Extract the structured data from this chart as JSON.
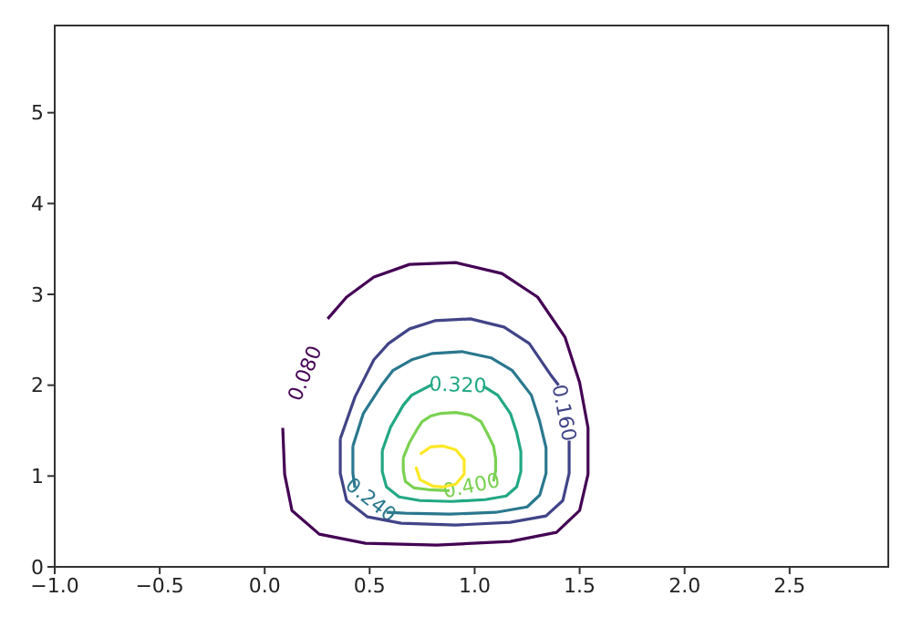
{
  "chart_data": {
    "type": "line",
    "marker": "none",
    "legend": false,
    "xlim": [
      -1,
      2.97
    ],
    "ylim": [
      0,
      5.96
    ],
    "xticks": [
      {
        "value": -1,
        "label": "−1.0"
      },
      {
        "value": -0.5,
        "label": "−0.5"
      },
      {
        "value": 0,
        "label": "0.0"
      },
      {
        "value": 0.5,
        "label": "0.5"
      },
      {
        "value": 1,
        "label": "1.0"
      },
      {
        "value": 1.5,
        "label": "1.5"
      },
      {
        "value": 2,
        "label": "2.0"
      },
      {
        "value": 2.5,
        "label": "2.5"
      }
    ],
    "yticks": [
      0,
      1,
      2,
      3,
      4,
      5
    ],
    "series": [
      {
        "name": "0.080",
        "color": "#440154",
        "x": [
          0.086,
          0.095,
          0.13,
          0.26,
          0.48,
          0.82,
          1.17,
          1.39,
          1.5,
          1.54,
          1.54,
          1.5,
          1.43,
          1.3,
          1.13,
          0.91,
          0.69,
          0.52,
          0.39,
          0.3
        ],
        "values": [
          1.53,
          1.02,
          0.62,
          0.36,
          0.26,
          0.24,
          0.28,
          0.38,
          0.62,
          1.02,
          1.53,
          2.03,
          2.53,
          2.97,
          3.23,
          3.35,
          3.33,
          3.19,
          2.97,
          2.73
        ]
      },
      {
        "name": "0.160",
        "color": "#414487",
        "x": [
          0.36,
          0.36,
          0.39,
          0.49,
          0.65,
          0.91,
          1.17,
          1.34,
          1.42,
          1.45,
          1.45,
          null,
          1.4,
          1.36,
          1.26,
          1.14,
          0.98,
          0.81,
          0.69,
          0.59,
          0.52,
          0.43,
          0.36
        ],
        "values": [
          1.41,
          1.03,
          0.73,
          0.55,
          0.48,
          0.46,
          0.49,
          0.56,
          0.73,
          1.03,
          1.39,
          null,
          2.0,
          2.12,
          2.46,
          2.64,
          2.73,
          2.71,
          2.62,
          2.46,
          2.28,
          1.87,
          1.41
        ]
      },
      {
        "name": "0.240",
        "color": "#2a788e",
        "x": [
          0.42,
          0.42,
          0.43,
          null,
          0.58,
          0.67,
          0.88,
          1.1,
          1.25,
          1.31,
          1.34,
          1.34,
          1.31,
          1.27,
          1.18,
          1.08,
          0.94,
          0.8,
          0.7,
          0.61,
          0.56,
          0.47,
          0.42
        ],
        "values": [
          1.33,
          1.03,
          0.87,
          null,
          0.6,
          0.59,
          0.58,
          0.6,
          0.66,
          0.79,
          1.03,
          1.31,
          1.6,
          1.89,
          2.16,
          2.3,
          2.37,
          2.35,
          2.28,
          2.16,
          2.01,
          1.69,
          1.33
        ]
      },
      {
        "name": "0.320",
        "color": "#22a884",
        "x": [
          0.56,
          0.56,
          0.58,
          0.64,
          0.74,
          0.89,
          1.05,
          1.15,
          1.2,
          1.22,
          1.22,
          1.2,
          1.17,
          1.11,
          1.04,
          null,
          0.8,
          0.7,
          0.66,
          0.6,
          0.56
        ],
        "values": [
          1.28,
          1.05,
          0.88,
          0.77,
          0.73,
          0.72,
          0.74,
          0.78,
          0.88,
          1.05,
          1.27,
          1.48,
          1.69,
          1.89,
          1.99,
          null,
          2.01,
          1.89,
          1.78,
          1.54,
          1.28
        ]
      },
      {
        "name": "0.400",
        "color": "#7ad151",
        "x": [
          0.66,
          0.66,
          0.67,
          0.71,
          0.78,
          0.88,
          null,
          1.09,
          1.1,
          1.1,
          1.09,
          1.06,
          1.03,
          0.98,
          0.91,
          0.84,
          0.79,
          0.75,
          0.73,
          0.69,
          0.66
        ],
        "values": [
          1.2,
          1.06,
          0.94,
          0.87,
          0.85,
          0.84,
          null,
          0.94,
          1.06,
          1.19,
          1.33,
          1.47,
          1.6,
          1.67,
          1.7,
          1.69,
          1.66,
          1.6,
          1.53,
          1.37,
          1.2
        ]
      },
      {
        "color": "#fde725",
        "x": [
          0.72,
          0.74,
          0.8,
          0.85,
          0.91,
          0.95,
          0.95,
          0.91,
          0.85,
          0.79,
          0.74
        ],
        "values": [
          1.1,
          0.96,
          0.89,
          0.88,
          0.91,
          1.02,
          1.18,
          1.29,
          1.33,
          1.32,
          1.24
        ]
      }
    ]
  }
}
